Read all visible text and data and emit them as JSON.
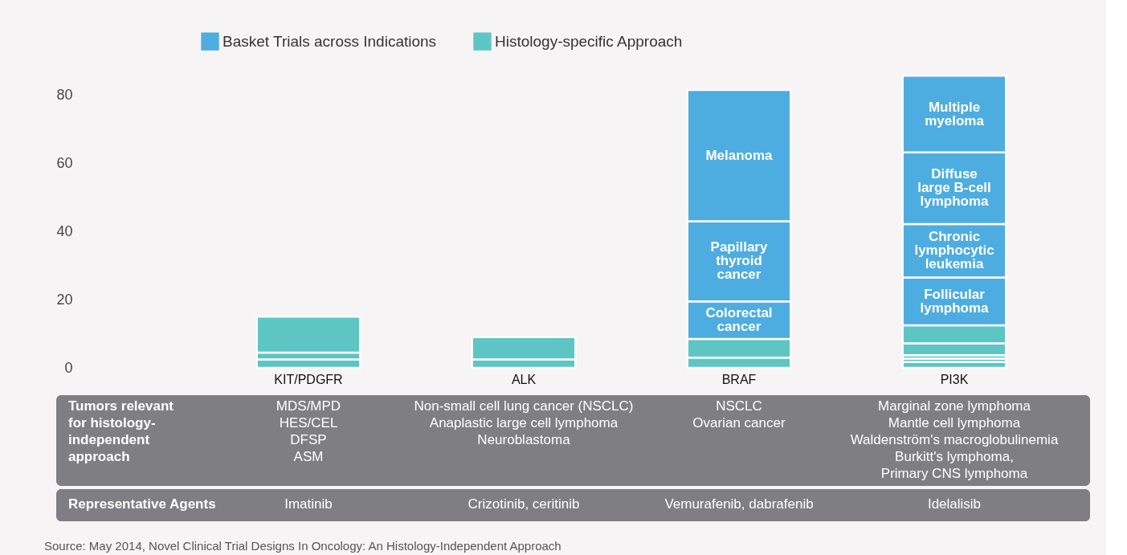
{
  "chart_data": {
    "type": "bar",
    "stacked": true,
    "categories": [
      "KIT/PDGFR",
      "ALK",
      "BRAF",
      "PI3K"
    ],
    "series": [
      {
        "name": "Histology-specific Approach",
        "color": "#5ec5c5",
        "values": [
          2.5,
          2.5,
          3,
          1.7
        ]
      },
      {
        "color": "#5ec5c5",
        "values": [
          2,
          6.5,
          5.5,
          1
        ]
      },
      {
        "color": "#5ec5c5",
        "values": [
          10.5,
          null,
          null,
          1
        ]
      },
      {
        "color": "#5ec5c5",
        "values": [
          null,
          null,
          null,
          3.5
        ]
      },
      {
        "color": "#5ec5c5",
        "values": [
          null,
          null,
          null,
          5.3
        ]
      },
      {
        "name": "Basket Trials across Indications",
        "color": "#4eade0",
        "values": [
          null,
          null,
          11,
          14
        ],
        "value_labels": [
          null,
          null,
          "Colorectal cancer",
          "Follicular lymphoma"
        ]
      },
      {
        "color": "#4eade0",
        "values": [
          null,
          null,
          23.5,
          15.7
        ],
        "value_labels": [
          null,
          null,
          "Papillary thyroid cancer",
          "Chronic lymphocytic leukemia"
        ]
      },
      {
        "color": "#4eade0",
        "values": [
          null,
          null,
          38.5,
          21
        ],
        "value_labels": [
          null,
          null,
          "Melanoma",
          "Diffuse large B-cell lymphoma"
        ]
      },
      {
        "color": "#4eade0",
        "values": [
          null,
          null,
          null,
          22.5
        ],
        "value_labels": [
          null,
          null,
          null,
          "Multiple myeloma"
        ]
      }
    ],
    "ylim": [
      0,
      86
    ],
    "yticks": [
      0,
      20,
      40,
      60,
      80
    ],
    "grid": false,
    "legend": "top",
    "annotations": [
      "Tumors relevant\nfor histology-\nindependent\napproach",
      "MDS/MPD\nHES/CEL\nDFSP\nASM",
      "Non-small cell lung cancer (NSCLC)\nAnaplastic large cell lymphoma\nNeuroblastoma",
      "NSCLC\nOvarian cancer",
      "Marginal zone lymphoma\nMantle cell lymphoma\nWaldenström's macroglobulinemia\nBurkitt's lymphoma,\nPrimary CNS lymphoma",
      "Representative Agents",
      "Imatinib",
      "Crizotinib, ceritinib",
      "Vemurafenib, dabrafenib",
      "Idelalisib",
      "Source: May 2014, Novel Clinical Trial Designs In Oncology: An Histology-Independent Approach"
    ]
  }
}
